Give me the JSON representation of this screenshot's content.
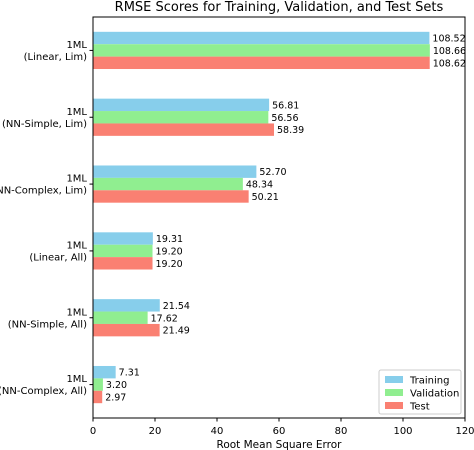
{
  "chart_data": {
    "type": "bar",
    "orientation": "horizontal",
    "title": "RMSE Scores for Training, Validation, and Test Sets",
    "xlabel": "Root Mean Square Error",
    "ylabel": "",
    "xlim": [
      0,
      120
    ],
    "xticks": [
      "0",
      "20",
      "40",
      "60",
      "80",
      "100",
      "120"
    ],
    "categories": [
      [
        "1ML",
        "(Linear, Lim)"
      ],
      [
        "1ML",
        "(NN-Simple, Lim)"
      ],
      [
        "1ML",
        "(NN-Complex, Lim)"
      ],
      [
        "1ML",
        "(Linear, All)"
      ],
      [
        "1ML",
        "(NN-Simple, All)"
      ],
      [
        "1ML",
        "(NN-Complex, All)"
      ]
    ],
    "series": [
      {
        "name": "Training",
        "color": "#87CEEB",
        "values": [
          108.52,
          56.81,
          52.7,
          19.31,
          21.54,
          7.31
        ]
      },
      {
        "name": "Validation",
        "color": "#90EE90",
        "values": [
          108.66,
          56.56,
          48.34,
          19.2,
          17.62,
          3.2
        ]
      },
      {
        "name": "Test",
        "color": "#FA8072",
        "values": [
          108.62,
          58.39,
          50.21,
          19.2,
          21.49,
          2.97
        ]
      }
    ],
    "grid": false,
    "legend_position": "lower-right"
  }
}
